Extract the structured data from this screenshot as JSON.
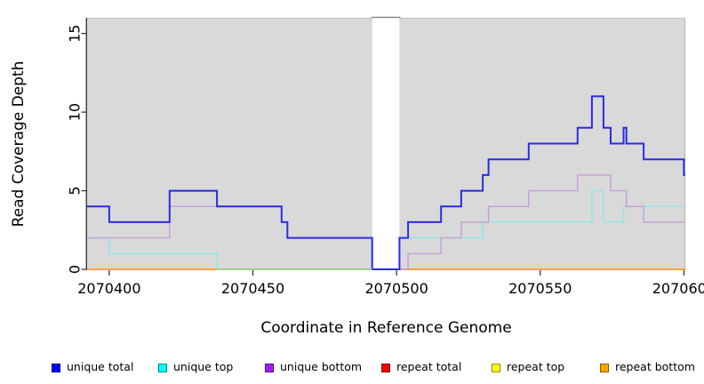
{
  "chart_data": {
    "type": "line",
    "subtype": "step-coverage",
    "title": "",
    "xlabel": "Coordinate in Reference Genome",
    "ylabel": "Read Coverage Depth",
    "xlim": [
      2070392.3,
      2070600.5
    ],
    "ylim": [
      0,
      16
    ],
    "grid": "off",
    "panel_background": "#d9d9d9",
    "panel_top_edge_color": "#c2c2c2",
    "panel_right_edge_color": "#b5b5b5",
    "axis_color": "#2b2b2b",
    "tick_label_color": "#000000",
    "x_ticks": [
      {
        "value": 2070400,
        "label": "2070400"
      },
      {
        "value": 2070450,
        "label": "2070450"
      },
      {
        "value": 2070500,
        "label": "2070500"
      },
      {
        "value": 2070550,
        "label": "2070550"
      },
      {
        "value": 2070600,
        "label": "2070600"
      }
    ],
    "y_ticks": [
      {
        "value": 0,
        "label": "0"
      },
      {
        "value": 5,
        "label": "5"
      },
      {
        "value": 10,
        "label": "10"
      },
      {
        "value": 15,
        "label": "15"
      }
    ],
    "gap_region": {
      "from": 2070491.5,
      "to": 2070501,
      "fill": "#ffffff",
      "top_bar_color": "#8c8c8c"
    },
    "series": [
      {
        "name": "unique total",
        "color": "#2b2be6",
        "legend_color": "#0000ff",
        "step_points": [
          [
            2070392.3,
            4
          ],
          [
            2070400,
            3
          ],
          [
            2070421,
            5
          ],
          [
            2070437.5,
            4
          ],
          [
            2070460,
            3
          ],
          [
            2070462,
            2
          ],
          [
            2070491.5,
            0
          ],
          [
            2070501,
            2
          ],
          [
            2070504,
            3
          ],
          [
            2070515.5,
            4
          ],
          [
            2070522.5,
            5
          ],
          [
            2070530,
            6
          ],
          [
            2070532,
            7
          ],
          [
            2070546,
            8
          ],
          [
            2070563,
            9
          ],
          [
            2070568,
            11
          ],
          [
            2070572,
            9
          ],
          [
            2070574.5,
            8
          ],
          [
            2070579,
            9
          ],
          [
            2070580,
            8
          ],
          [
            2070586,
            7
          ],
          [
            2070600,
            6
          ]
        ],
        "x_end": 2070600.5
      },
      {
        "name": "unique top",
        "color": "#8ae8ea",
        "legend_color": "#00ffff",
        "step_points": [
          [
            2070392.3,
            2
          ],
          [
            2070400,
            1
          ],
          [
            2070437.5,
            0
          ],
          [
            2070501,
            2
          ],
          [
            2070530,
            3
          ],
          [
            2070568,
            5
          ],
          [
            2070572,
            3
          ],
          [
            2070579,
            4
          ]
        ],
        "x_end": 2070600.5
      },
      {
        "name": "unique bottom",
        "color": "#c69cdd",
        "legend_color": "#a020f0",
        "step_points": [
          [
            2070392.3,
            2
          ],
          [
            2070421,
            4
          ],
          [
            2070460,
            3
          ],
          [
            2070462,
            2
          ],
          [
            2070491.5,
            0
          ],
          [
            2070504,
            1
          ],
          [
            2070515.5,
            2
          ],
          [
            2070522.5,
            3
          ],
          [
            2070532,
            4
          ],
          [
            2070546,
            5
          ],
          [
            2070563,
            6
          ],
          [
            2070574.5,
            5
          ],
          [
            2070580,
            4
          ],
          [
            2070586,
            3
          ]
        ],
        "x_end": 2070600.5
      },
      {
        "name": "repeat total",
        "color": "#dd0000",
        "legend_color": "#ff0000",
        "step_points": [
          [
            2070392.3,
            0
          ]
        ],
        "x_end": 2070600.5
      },
      {
        "name": "repeat top",
        "color": "#f0f000",
        "legend_color": "#ffff00",
        "step_points": [
          [
            2070392.3,
            0
          ]
        ],
        "x_end": 2070600.5
      },
      {
        "name": "repeat bottom",
        "color": "#ffa126",
        "legend_color": "#ffa500",
        "step_points": [
          [
            2070392.3,
            0
          ]
        ],
        "x_end": 2070600.5
      }
    ],
    "zero_line_blend": {
      "from": 2070437.5,
      "to": 2070491.5,
      "value": 0,
      "color": "#98cf8b"
    },
    "legend": [
      {
        "label": "unique total",
        "color": "#0000ff"
      },
      {
        "label": "unique top",
        "color": "#00ffff"
      },
      {
        "label": "unique bottom",
        "color": "#a020f0"
      },
      {
        "label": "repeat total",
        "color": "#ff0000"
      },
      {
        "label": "repeat top",
        "color": "#ffff00"
      },
      {
        "label": "repeat bottom",
        "color": "#ffa500"
      }
    ]
  }
}
